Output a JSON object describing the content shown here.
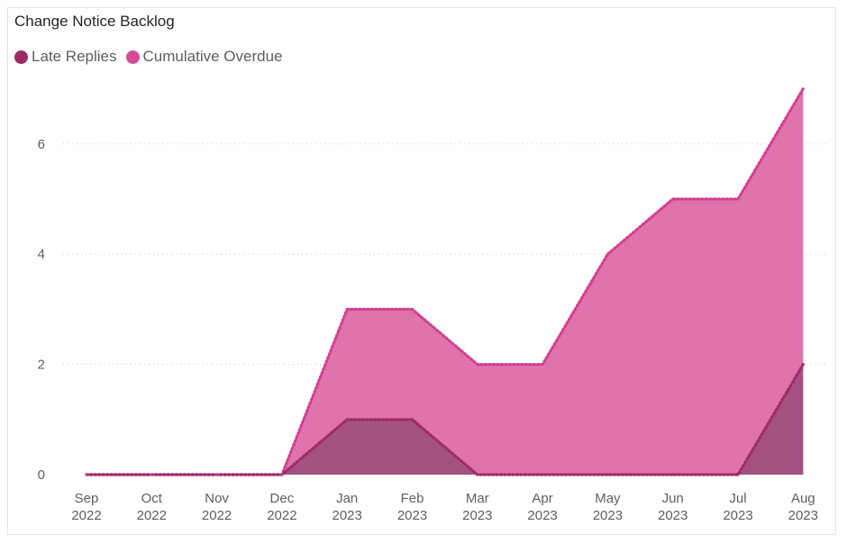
{
  "chart_data": {
    "type": "area",
    "title": "Change Notice Backlog",
    "categories": [
      [
        "Sep",
        "2022"
      ],
      [
        "Oct",
        "2022"
      ],
      [
        "Nov",
        "2022"
      ],
      [
        "Dec",
        "2022"
      ],
      [
        "Jan",
        "2023"
      ],
      [
        "Feb",
        "2023"
      ],
      [
        "Mar",
        "2023"
      ],
      [
        "Apr",
        "2023"
      ],
      [
        "May",
        "2023"
      ],
      [
        "Jun",
        "2023"
      ],
      [
        "Jul",
        "2023"
      ],
      [
        "Aug",
        "2023"
      ]
    ],
    "series": [
      {
        "name": "Late Replies",
        "color": "#9e2a63",
        "values": [
          0,
          0,
          0,
          0,
          1,
          1,
          0,
          0,
          0,
          0,
          0,
          2
        ]
      },
      {
        "name": "Cumulative Overdue",
        "color": "#d64b97",
        "values": [
          0,
          0,
          0,
          0,
          3,
          3,
          2,
          2,
          4,
          5,
          5,
          7
        ]
      }
    ],
    "yticks": [
      0,
      2,
      4,
      6
    ],
    "ylim": [
      0,
      7
    ],
    "grid": true,
    "legend_position": "top-left"
  }
}
